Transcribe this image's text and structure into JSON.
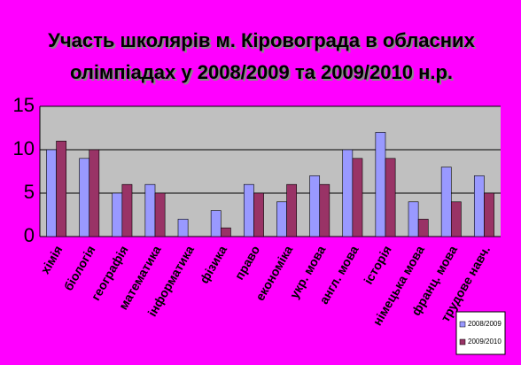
{
  "chart_data": {
    "type": "bar",
    "title": [
      "Участь школярів м. Кіровограда в обласних",
      "олімпіадах у 2008/2009  та 2009/2010 н.р."
    ],
    "categories": [
      "хімія",
      "біологія",
      "географія",
      "математика",
      "інформатика",
      "фізика",
      "право",
      "економіка",
      "укр. мова",
      "англ. мова",
      "історія",
      "німецька мова",
      "франц. мова",
      "трудове навч."
    ],
    "series": [
      {
        "name": "2008/2009",
        "color": "#9999ff",
        "values": [
          10,
          9,
          5,
          6,
          2,
          3,
          6,
          4,
          7,
          10,
          12,
          4,
          8,
          7
        ]
      },
      {
        "name": "2009/2010",
        "color": "#993366",
        "values": [
          11,
          10,
          6,
          5,
          0,
          1,
          5,
          6,
          6,
          9,
          9,
          2,
          4,
          5
        ]
      }
    ],
    "ylim": [
      0,
      15
    ],
    "yticks": [
      0,
      5,
      10,
      15
    ],
    "grid": true,
    "legend": "bottom-right"
  }
}
